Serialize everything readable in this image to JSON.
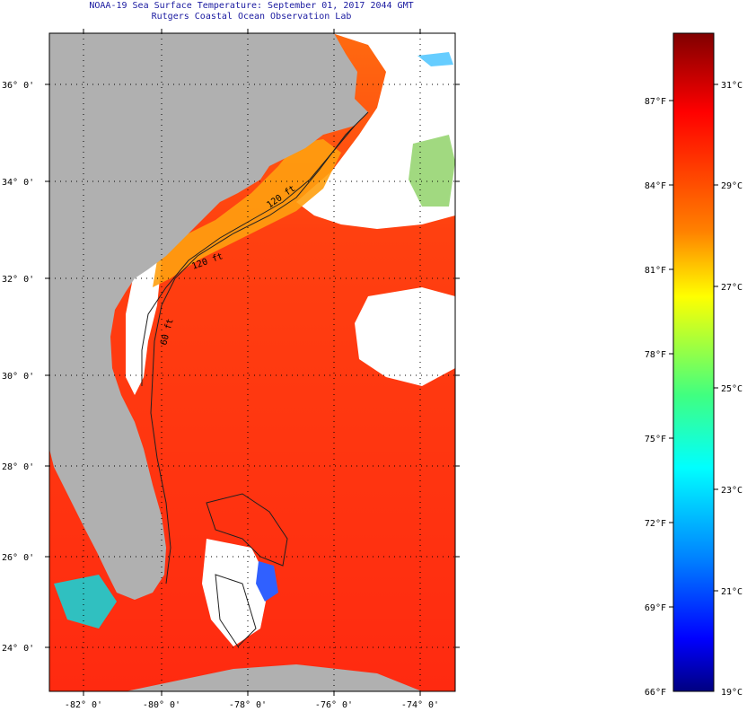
{
  "header": {
    "title": "NOAA-19 Sea Surface Temperature:  September 01, 2017 2044 GMT",
    "subtitle": "Rutgers Coastal Ocean Observation Lab"
  },
  "map": {
    "lat_labels": [
      "36° 0'",
      "34° 0'",
      "32° 0'",
      "30° 0'",
      "28° 0'",
      "26° 0'",
      "24° 0'"
    ],
    "lon_labels": [
      "-82° 0'",
      "-80° 0'",
      "-78° 0'",
      "-76° 0'",
      "-74° 0'"
    ],
    "contour_labels": [
      "120 ft",
      "120 ft",
      "60 ft"
    ],
    "colors": {
      "land": "#b0b0b0",
      "cloud": "#ffffff",
      "warm_sea": "#ff3a10",
      "shelf": "#ffa010"
    }
  },
  "colorbar": {
    "fahrenheit": [
      "87°F",
      "84°F",
      "81°F",
      "78°F",
      "75°F",
      "72°F",
      "69°F",
      "66°F"
    ],
    "celsius": [
      "31°C",
      "29°C",
      "27°C",
      "25°C",
      "23°C",
      "21°C",
      "19°C"
    ],
    "colors": [
      "#800000",
      "#ff0000",
      "#ff8000",
      "#ffff00",
      "#40ff80",
      "#00ffff",
      "#0080ff",
      "#0000ff",
      "#000080"
    ]
  }
}
